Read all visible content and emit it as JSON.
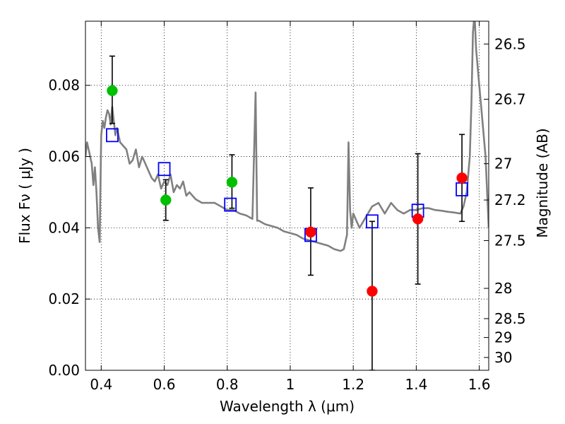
{
  "chart_data": {
    "type": "scatter",
    "xlabel": "Wavelength  λ (μm)",
    "ylabel": "Flux  Fν  ( μJy )",
    "y2label": "Magnitude (AB)",
    "xlim": [
      0.35,
      1.63
    ],
    "ylim": [
      0.0,
      0.098
    ],
    "grid": true,
    "x_ticks": [
      0.4,
      0.6,
      0.8,
      1.0,
      1.2,
      1.4,
      1.6
    ],
    "x_tick_labels": [
      "0.4",
      "0.6",
      "0.8",
      "1",
      "1.2",
      "1.4",
      "1.6"
    ],
    "y_ticks": [
      0.0,
      0.02,
      0.04,
      0.06,
      0.08
    ],
    "y_tick_labels": [
      "0.00",
      "0.02",
      "0.04",
      "0.06",
      "0.08"
    ],
    "y2_ticks": [
      {
        "flux": 0.0916,
        "label": "26.5"
      },
      {
        "flux": 0.0761,
        "label": "26.7"
      },
      {
        "flux": 0.058,
        "label": "27"
      },
      {
        "flux": 0.0478,
        "label": "27.2"
      },
      {
        "flux": 0.0364,
        "label": "27.5"
      },
      {
        "flux": 0.023,
        "label": "28"
      },
      {
        "flux": 0.0145,
        "label": "28.5"
      },
      {
        "flux": 0.0092,
        "label": "29"
      },
      {
        "flux": 0.0036,
        "label": "30"
      }
    ],
    "series": [
      {
        "kind": "model-sed-line",
        "color": "#808080",
        "x": [
          0.35,
          0.355,
          0.36,
          0.365,
          0.37,
          0.375,
          0.38,
          0.385,
          0.39,
          0.395,
          0.4,
          0.405,
          0.41,
          0.415,
          0.42,
          0.425,
          0.43,
          0.435,
          0.44,
          0.445,
          0.45,
          0.455,
          0.46,
          0.47,
          0.48,
          0.49,
          0.5,
          0.51,
          0.52,
          0.53,
          0.54,
          0.55,
          0.56,
          0.57,
          0.58,
          0.59,
          0.6,
          0.61,
          0.62,
          0.63,
          0.64,
          0.65,
          0.66,
          0.67,
          0.68,
          0.7,
          0.72,
          0.74,
          0.76,
          0.78,
          0.8,
          0.82,
          0.84,
          0.86,
          0.88,
          0.89,
          0.895,
          0.9,
          0.92,
          0.94,
          0.96,
          0.98,
          1.0,
          1.02,
          1.04,
          1.06,
          1.08,
          1.1,
          1.12,
          1.14,
          1.16,
          1.17,
          1.18,
          1.185,
          1.19,
          1.195,
          1.2,
          1.21,
          1.22,
          1.24,
          1.26,
          1.28,
          1.3,
          1.32,
          1.34,
          1.36,
          1.38,
          1.4,
          1.42,
          1.44,
          1.46,
          1.48,
          1.5,
          1.52,
          1.54,
          1.55,
          1.56,
          1.57,
          1.575,
          1.58,
          1.585,
          1.59,
          1.6,
          1.61,
          1.62,
          1.63
        ],
        "values": [
          0.06,
          0.064,
          0.062,
          0.06,
          0.058,
          0.052,
          0.057,
          0.05,
          0.04,
          0.036,
          0.066,
          0.07,
          0.068,
          0.071,
          0.073,
          0.072,
          0.069,
          0.074,
          0.07,
          0.066,
          0.068,
          0.066,
          0.064,
          0.063,
          0.062,
          0.058,
          0.059,
          0.062,
          0.057,
          0.06,
          0.058,
          0.056,
          0.054,
          0.053,
          0.055,
          0.051,
          0.053,
          0.052,
          0.055,
          0.05,
          0.052,
          0.051,
          0.053,
          0.049,
          0.05,
          0.048,
          0.047,
          0.047,
          0.047,
          0.046,
          0.045,
          0.045,
          0.044,
          0.0435,
          0.0425,
          0.078,
          0.042,
          0.042,
          0.041,
          0.0405,
          0.04,
          0.039,
          0.0385,
          0.038,
          0.037,
          0.0365,
          0.036,
          0.0355,
          0.035,
          0.034,
          0.0335,
          0.034,
          0.038,
          0.064,
          0.045,
          0.04,
          0.044,
          0.042,
          0.04,
          0.043,
          0.046,
          0.047,
          0.044,
          0.047,
          0.045,
          0.044,
          0.045,
          0.045,
          0.0455,
          0.0455,
          0.045,
          0.0448,
          0.0445,
          0.0443,
          0.044,
          0.046,
          0.05,
          0.06,
          0.075,
          0.095,
          0.1,
          0.09,
          0.08,
          0.07,
          0.06,
          0.04
        ]
      },
      {
        "name": "",
        "kind": "model-photometry",
        "marker": "open-square",
        "color": "#0000ff",
        "x": [
          0.435,
          0.6,
          0.81,
          1.065,
          1.26,
          1.405,
          1.545
        ],
        "values": [
          0.066,
          0.0565,
          0.0465,
          0.038,
          0.0418,
          0.0448,
          0.0508
        ]
      },
      {
        "name": "",
        "kind": "observed-photometry",
        "marker": "filled-circle",
        "color": "#00c000",
        "x": [
          0.435,
          0.605,
          0.815
        ],
        "values": [
          0.0785,
          0.0478,
          0.0528
        ],
        "yerr_low": [
          0.0693,
          0.0421,
          null
        ],
        "yerr_high": [
          0.0882,
          0.0535,
          null
        ]
      },
      {
        "name": "",
        "kind": "observed-photometry",
        "marker": "filled-circle",
        "color": "#ff0000",
        "x": [
          1.065,
          1.26,
          1.405,
          1.545
        ],
        "values": [
          0.0388,
          0.0222,
          0.0425,
          0.054
        ],
        "yerr_low": [
          0.0267,
          0.0,
          0.0242,
          0.0418
        ],
        "yerr_high": [
          0.0512,
          0.0418,
          0.0608,
          0.0662
        ]
      }
    ],
    "extra_errorbars": [
      {
        "x": 0.815,
        "low": 0.0455,
        "high": 0.0605
      }
    ]
  }
}
